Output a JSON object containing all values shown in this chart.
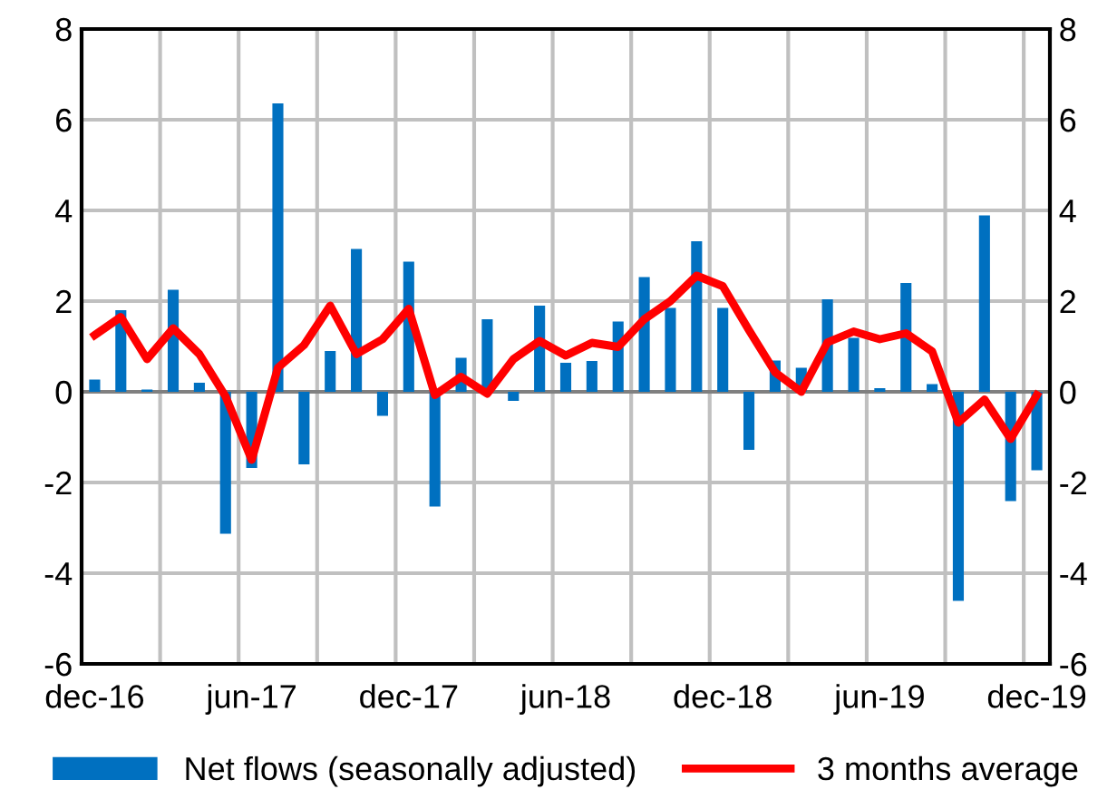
{
  "chart_data": {
    "type": "bar",
    "categories": [
      "dec-16",
      null,
      null,
      null,
      null,
      null,
      "jun-17",
      null,
      null,
      null,
      null,
      null,
      "dec-17",
      null,
      null,
      null,
      null,
      null,
      "jun-18",
      null,
      null,
      null,
      null,
      null,
      "dec-18",
      null,
      null,
      null,
      null,
      null,
      "jun-19",
      null,
      null,
      null,
      null,
      null,
      "dec-19"
    ],
    "series": [
      {
        "name": "Net flows (seasonally adjusted)",
        "color": "#0070c0",
        "values": [
          0.27,
          1.8,
          0.05,
          2.25,
          0.2,
          -3.13,
          -1.68,
          6.36,
          -1.6,
          0.9,
          3.15,
          -0.53,
          2.87,
          -2.53,
          0.75,
          1.6,
          -0.2,
          1.9,
          0.64,
          0.68,
          1.55,
          2.53,
          1.85,
          3.32,
          1.85,
          -1.28,
          0.69,
          0.53,
          2.04,
          1.19,
          0.08,
          2.4,
          0.17,
          -4.61,
          3.89,
          -2.41,
          -1.73
        ]
      },
      {
        "name": "3 months average",
        "type": "line",
        "color": "#ff0000",
        "values": [
          1.25,
          1.65,
          0.72,
          1.4,
          0.83,
          -0.1,
          -1.5,
          0.53,
          1.03,
          1.9,
          0.83,
          1.16,
          1.83,
          -0.07,
          0.33,
          -0.04,
          0.72,
          1.12,
          0.8,
          1.08,
          0.99,
          1.6,
          2.0,
          2.56,
          2.33,
          1.36,
          0.43,
          0.0,
          1.09,
          1.33,
          1.16,
          1.29,
          0.89,
          -0.68,
          -0.17,
          -1.04,
          -0.07
        ]
      }
    ],
    "ylim": [
      -6,
      8
    ],
    "yticks": [
      -6,
      -4,
      -2,
      0,
      2,
      4,
      6,
      8
    ],
    "y2lim": [
      -6,
      8
    ],
    "y2ticks": [
      -6,
      -4,
      -2,
      0,
      2,
      4,
      6,
      8
    ],
    "grid": true,
    "legend": "bottom",
    "marker": "none",
    "line_style": "solid"
  }
}
